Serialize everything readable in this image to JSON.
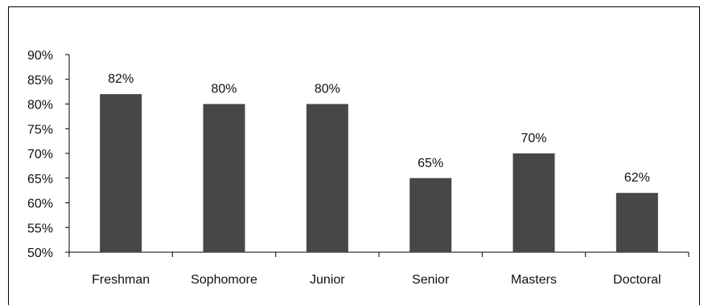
{
  "chart_data": {
    "type": "bar",
    "categories": [
      "Freshman",
      "Sophomore",
      "Junior",
      "Senior",
      "Masters",
      "Doctoral"
    ],
    "values": [
      82,
      80,
      80,
      65,
      70,
      62
    ],
    "value_labels": [
      "82%",
      "80%",
      "80%",
      "65%",
      "70%",
      "62%"
    ],
    "title": "",
    "xlabel": "",
    "ylabel": "",
    "ylim": [
      50,
      90
    ],
    "yticks": [
      50,
      55,
      60,
      65,
      70,
      75,
      80,
      85,
      90
    ],
    "ytick_labels": [
      "50%",
      "55%",
      "60%",
      "65%",
      "70%",
      "75%",
      "80%",
      "85%",
      "90%"
    ],
    "grid": false,
    "legend": "none",
    "bar_color": "#474747"
  }
}
